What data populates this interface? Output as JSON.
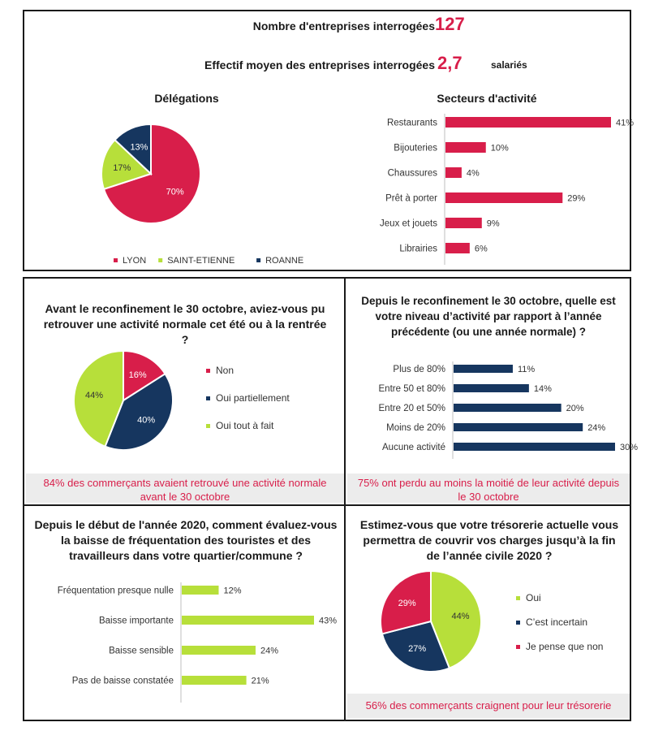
{
  "header": {
    "respondents_label": "Nombre d'entreprises interrogées",
    "respondents_value": "127",
    "staff_label": "Effectif moyen des entreprises interrogées",
    "staff_value": "2,7",
    "staff_unit": "salariés"
  },
  "colors": {
    "pink": "#d81e4a",
    "green": "#b7df3a",
    "navy": "#16365f"
  },
  "panels": {
    "delegations": {
      "title": "Délégations"
    },
    "sectors": {
      "title": "Secteurs d'activité"
    },
    "activity_before": {
      "title": "Avant le reconfinement le 30 octobre, aviez-vous pu retrouver une activité normale cet été ou à la rentrée ?",
      "note": "84% des commerçants avaient retrouvé une activité normale avant le 30 octobre"
    },
    "activity_since": {
      "title": "Depuis le reconfinement le 30 octobre, quelle est votre niveau d’activité par rapport à l’année précédente (ou une année normale) ?",
      "note": "75% ont perdu au moins la moitié de leur activité depuis le 30 octobre"
    },
    "frequentation": {
      "title": "Depuis le début de l'année 2020, comment évaluez-vous la baisse de fréquentation des touristes et des travailleurs dans votre quartier/commune ?"
    },
    "treasury": {
      "title": "Estimez-vous que votre trésorerie actuelle vous permettra de couvrir vos charges jusqu’à la fin de l’année civile 2020 ?",
      "note": "56% des commerçants craignent pour leur trésorerie"
    }
  },
  "chart_data": [
    {
      "id": "delegations",
      "type": "pie",
      "title": "Délégations",
      "legend_position": "bottom",
      "slices": [
        {
          "label": "LYON",
          "value": 70,
          "display": "70%",
          "color": "#d81e4a"
        },
        {
          "label": "SAINT-ETIENNE",
          "value": 17,
          "display": "17%",
          "color": "#b7df3a"
        },
        {
          "label": "ROANNE",
          "value": 13,
          "display": "13%",
          "color": "#16365f"
        }
      ]
    },
    {
      "id": "sectors",
      "type": "bar",
      "orientation": "horizontal",
      "title": "Secteurs d'activité",
      "color": "#d81e4a",
      "categories": [
        "Restaurants",
        "Bijouteries",
        "Chaussures",
        "Prêt à porter",
        "Jeux et jouets",
        "Librairies"
      ],
      "values": [
        41,
        10,
        4,
        29,
        9,
        6
      ],
      "labels": [
        "41%",
        "10%",
        "4%",
        "29%",
        "9%",
        "6%"
      ],
      "xlim": [
        0,
        41
      ]
    },
    {
      "id": "activity_before",
      "type": "pie",
      "legend_position": "right",
      "slices": [
        {
          "label": "Non",
          "value": 16,
          "display": "16%",
          "color": "#d81e4a"
        },
        {
          "label": "Oui partiellement",
          "value": 40,
          "display": "40%",
          "color": "#16365f"
        },
        {
          "label": "Oui tout à fait",
          "value": 44,
          "display": "44%",
          "color": "#b7df3a"
        }
      ]
    },
    {
      "id": "activity_since",
      "type": "bar",
      "orientation": "horizontal",
      "color": "#16365f",
      "categories": [
        "Plus de 80%",
        "Entre 50 et 80%",
        "Entre 20 et 50%",
        "Moins de 20%",
        "Aucune activité"
      ],
      "values": [
        11,
        14,
        20,
        24,
        30
      ],
      "labels": [
        "11%",
        "14%",
        "20%",
        "24%",
        "30%"
      ],
      "xlim": [
        0,
        30
      ]
    },
    {
      "id": "frequentation",
      "type": "bar",
      "orientation": "horizontal",
      "color": "#b7df3a",
      "categories": [
        "Fréquentation presque nulle",
        "Baisse importante",
        "Baisse sensible",
        "Pas de baisse constatée"
      ],
      "values": [
        12,
        43,
        24,
        21
      ],
      "labels": [
        "12%",
        "43%",
        "24%",
        "21%"
      ],
      "xlim": [
        0,
        43
      ]
    },
    {
      "id": "treasury",
      "type": "pie",
      "legend_position": "right",
      "slices": [
        {
          "label": "Oui",
          "value": 44,
          "display": "44%",
          "color": "#b7df3a"
        },
        {
          "label": "C’est incertain",
          "value": 27,
          "display": "27%",
          "color": "#16365f"
        },
        {
          "label": "Je pense que non",
          "value": 29,
          "display": "29%",
          "color": "#d81e4a"
        }
      ]
    }
  ]
}
